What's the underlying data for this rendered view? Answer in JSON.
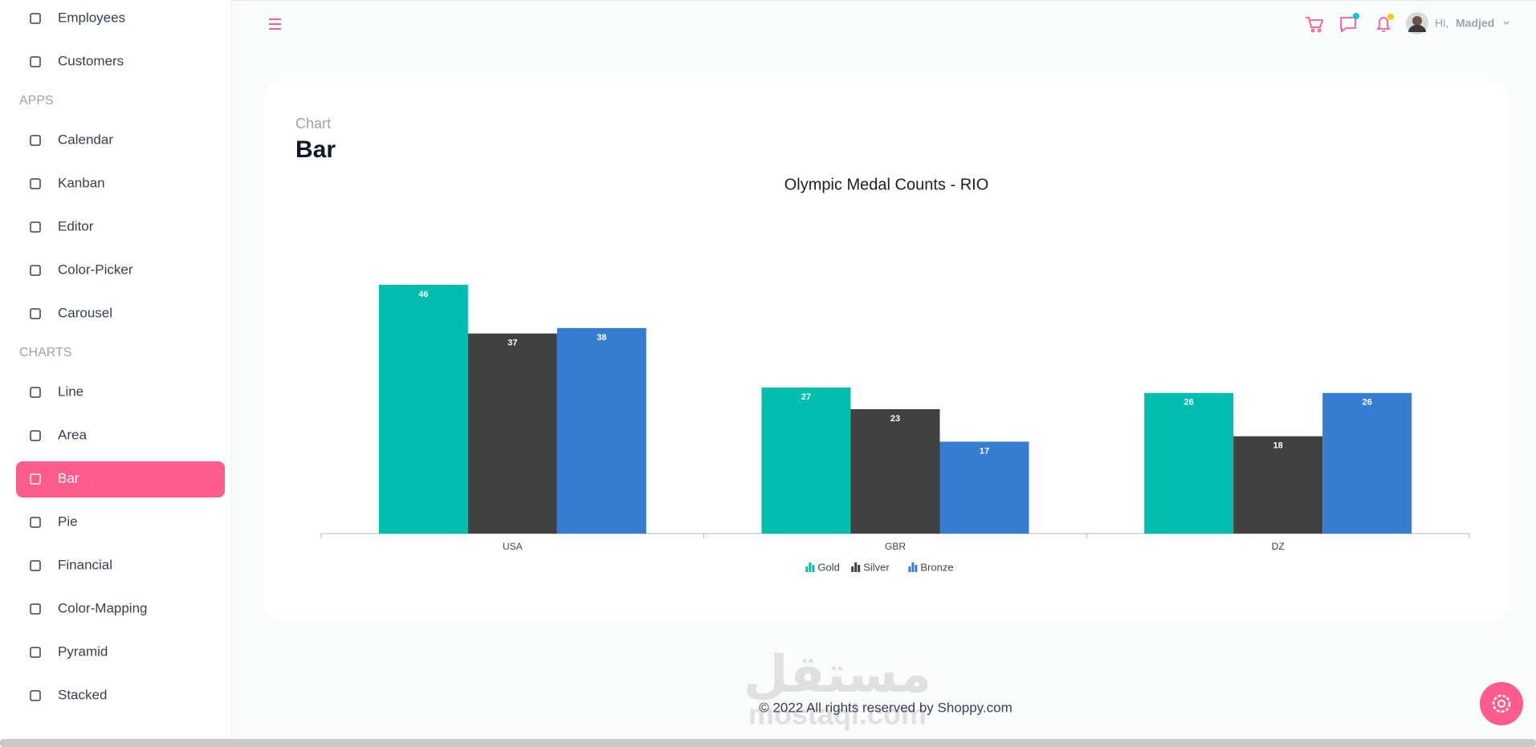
{
  "nav": [
    {
      "label": "Employees"
    },
    {
      "label": "Customers"
    },
    {
      "heading": "APPS"
    },
    {
      "label": "Calendar"
    },
    {
      "label": "Kanban"
    },
    {
      "label": "Editor"
    },
    {
      "label": "Color-Picker"
    },
    {
      "label": "Carousel"
    },
    {
      "heading": "CHARTS"
    },
    {
      "label": "Line"
    },
    {
      "label": "Area"
    },
    {
      "label": "Bar",
      "active": true
    },
    {
      "label": "Pie"
    },
    {
      "label": "Financial"
    },
    {
      "label": "Color-Mapping"
    },
    {
      "label": "Pyramid"
    },
    {
      "label": "Stacked"
    }
  ],
  "header": {
    "greeting": "Hi,",
    "user": "Madjed"
  },
  "card": {
    "category": "Chart",
    "heading": "Bar"
  },
  "chart_data": {
    "type": "bar",
    "title": "Olympic Medal Counts - RIO",
    "categories": [
      "USA",
      "GBR",
      "DZ"
    ],
    "series": [
      {
        "name": "Gold",
        "color": "#00bdae",
        "values": [
          46,
          27,
          26
        ]
      },
      {
        "name": "Silver",
        "color": "#404041",
        "values": [
          37,
          23,
          18
        ]
      },
      {
        "name": "Bronze",
        "color": "#357cd2",
        "values": [
          38,
          17,
          26
        ]
      }
    ],
    "ylim": [
      0,
      50
    ],
    "legend": "bottom"
  },
  "footer": "© 2022 All rights reserved by Shoppy.com",
  "watermark": {
    "arabic": "مستقل",
    "latin": "mostaql.com"
  }
}
